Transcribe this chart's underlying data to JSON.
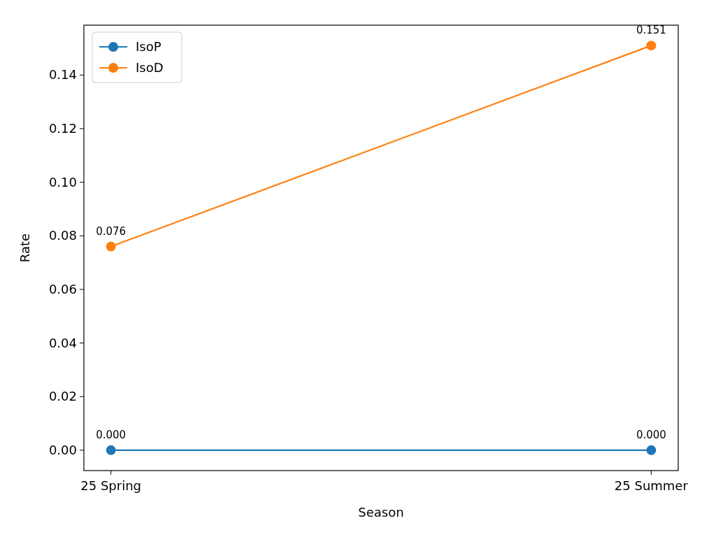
{
  "chart_data": {
    "type": "line",
    "xlabel": "Season",
    "ylabel": "Rate",
    "categories": [
      "25 Spring",
      "25 Summer"
    ],
    "series": [
      {
        "name": "IsoP",
        "color": "#1f77b4",
        "values": [
          0.0,
          0.0
        ],
        "value_labels": [
          "0.000",
          "0.000"
        ]
      },
      {
        "name": "IsoD",
        "color": "#ff7f0e",
        "values": [
          0.076,
          0.151
        ],
        "value_labels": [
          "0.076",
          "0.151"
        ]
      }
    ],
    "ylim": [
      -0.0076,
      0.1586
    ],
    "yticks": [
      {
        "value": 0,
        "label": "0.00"
      },
      {
        "value": 0.02,
        "label": "0.02"
      },
      {
        "value": 0.04,
        "label": "0.04"
      },
      {
        "value": 0.06,
        "label": "0.06"
      },
      {
        "value": 0.08,
        "label": "0.08"
      },
      {
        "value": 0.1,
        "label": "0.10"
      },
      {
        "value": 0.12,
        "label": "0.12"
      },
      {
        "value": 0.14,
        "label": "0.14"
      }
    ],
    "legend": "top left",
    "marker": "circle",
    "line_style": "solid",
    "grid": false
  }
}
